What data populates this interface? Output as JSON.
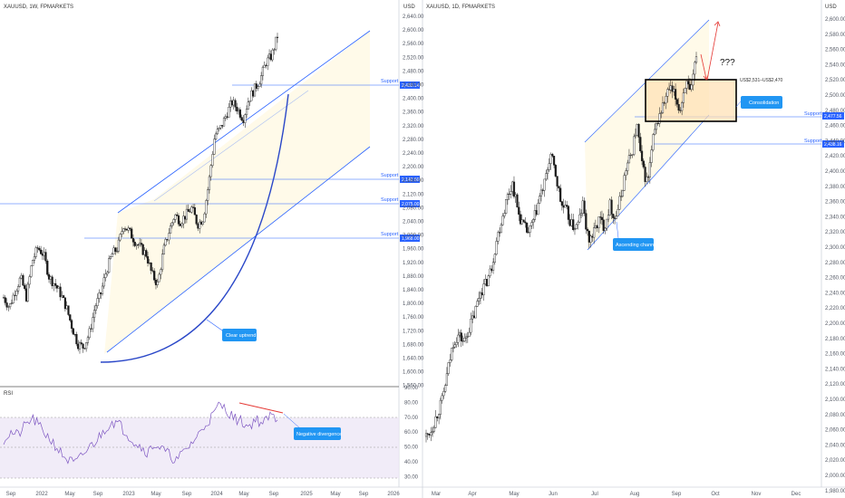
{
  "charts": {
    "left": {
      "title": "XAUUSD, 1W, FPMARKETS",
      "currency": "USD",
      "yticks": [
        "2,640.00",
        "2,600.00",
        "2,560.00",
        "2,520.00",
        "2,480.00",
        "2,440.00",
        "2,400.00",
        "2,360.00",
        "2,320.00",
        "2,280.00",
        "2,240.00",
        "2,200.00",
        "2,160.00",
        "2,120.00",
        "2,080.00",
        "2,040.00",
        "2,000.00",
        "1,960.00",
        "1,920.00",
        "1,880.00",
        "1,840.00",
        "1,800.00",
        "1,760.00",
        "1,720.00",
        "1,680.00",
        "1,640.00",
        "1,600.00",
        "1,560.00"
      ],
      "xticks": [
        "Sep",
        "2022",
        "May",
        "Sep",
        "2023",
        "May",
        "Sep",
        "2024",
        "May",
        "Sep",
        "2025",
        "May",
        "Sep",
        "2026"
      ],
      "support_label": "Support",
      "support_levels": [
        "2,433.14",
        "2,142.50",
        "2,075.00",
        "1,968.00"
      ],
      "annotation": "Clear uptrend",
      "rsi": {
        "label": "RSI",
        "yticks": [
          "90.00",
          "80.00",
          "70.00",
          "60.00",
          "50.00",
          "40.00",
          "30.00"
        ],
        "annotation": "Negative divergence"
      }
    },
    "right": {
      "title": "XAUUSD, 1D, FPMARKETS",
      "currency": "USD",
      "yticks": [
        "2,600.00",
        "2,580.00",
        "2,560.00",
        "2,540.00",
        "2,520.00",
        "2,500.00",
        "2,480.00",
        "2,460.00",
        "2,440.00",
        "2,420.00",
        "2,400.00",
        "2,380.00",
        "2,360.00",
        "2,340.00",
        "2,320.00",
        "2,300.00",
        "2,280.00",
        "2,260.00",
        "2,240.00",
        "2,220.00",
        "2,200.00",
        "2,180.00",
        "2,160.00",
        "2,140.00",
        "2,120.00",
        "2,100.00",
        "2,080.00",
        "2,060.00",
        "2,040.00",
        "2,020.00",
        "2,000.00",
        "1,980.00"
      ],
      "xticks": [
        "Mar",
        "Apr",
        "May",
        "Jun",
        "Jul",
        "Aug",
        "Sep",
        "Oct",
        "Nov",
        "Dec"
      ],
      "support_label": "Support",
      "support_levels": [
        "2,477.56",
        "2,438.16"
      ],
      "consolidation_range": "US$2,531–US$2,470",
      "consolidation_label": "Consolidation",
      "channel_label": "Ascending channel",
      "question_marks": "???"
    }
  },
  "chart_data": [
    {
      "type": "candlestick",
      "title": "XAUUSD, 1W, FPMARKETS",
      "ylim": [
        1540,
        2650
      ],
      "x_range": [
        "2021-09",
        "2026-09"
      ],
      "series": [
        {
          "name": "XAUUSD",
          "close_path": [
            1790,
            1760,
            1810,
            1850,
            1790,
            1900,
            1940,
            1920,
            1850,
            1830,
            1800,
            1760,
            1700,
            1650,
            1640,
            1680,
            1760,
            1800,
            1870,
            1920,
            1940,
            2010,
            1990,
            1960,
            1940,
            1920,
            1860,
            1830,
            1930,
            1990,
            2040,
            2020,
            2040,
            2060,
            2010,
            2030,
            2140,
            2280,
            2300,
            2340,
            2380,
            2360,
            2330,
            2390,
            2420,
            2450,
            2500,
            2520,
            2580
          ]
        }
      ],
      "support_levels": [
        2433.14,
        2142.5,
        2075.0,
        1968.0
      ],
      "annotations": [
        "Clear uptrend"
      ]
    },
    {
      "type": "line",
      "title": "RSI",
      "ylim": [
        25,
        92
      ],
      "series": [
        {
          "name": "RSI",
          "values": [
            55,
            60,
            58,
            65,
            70,
            64,
            58,
            52,
            45,
            40,
            38,
            44,
            50,
            55,
            62,
            68,
            66,
            60,
            54,
            50,
            46,
            52,
            48,
            44,
            40,
            46,
            52,
            58,
            66,
            72,
            80,
            76,
            70,
            68,
            64,
            70,
            66,
            72,
            70
          ]
        }
      ],
      "reference_levels": [
        70,
        50,
        30
      ],
      "annotations": [
        "Negative divergence"
      ]
    },
    {
      "type": "candlestick",
      "title": "XAUUSD, 1D, FPMARKETS",
      "ylim": [
        1970,
        2615
      ],
      "x_range": [
        "2024-02",
        "2024-12"
      ],
      "series": [
        {
          "name": "XAUUSD",
          "close_path": [
            2030,
            2040,
            2060,
            2080,
            2120,
            2160,
            2170,
            2160,
            2180,
            2200,
            2230,
            2240,
            2260,
            2300,
            2330,
            2360,
            2380,
            2340,
            2320,
            2310,
            2330,
            2360,
            2380,
            2420,
            2390,
            2350,
            2340,
            2320,
            2320,
            2350,
            2300,
            2310,
            2330,
            2320,
            2350,
            2330,
            2360,
            2400,
            2420,
            2460,
            2400,
            2380,
            2440,
            2470,
            2490,
            2510,
            2500,
            2480,
            2520,
            2500,
            2560
          ]
        }
      ],
      "support_levels": [
        2477.56,
        2438.16
      ],
      "consolidation_range": [
        2470,
        2531
      ],
      "annotations": [
        "Consolidation",
        "Ascending channel",
        "???"
      ]
    }
  ]
}
